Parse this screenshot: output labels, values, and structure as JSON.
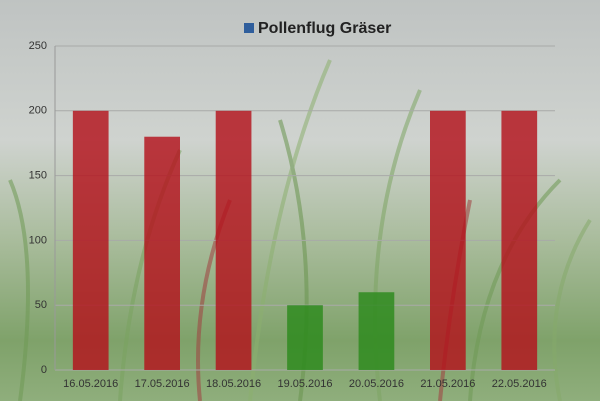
{
  "chart_data": {
    "type": "bar",
    "categories": [
      "16.05.2016",
      "17.05.2016",
      "18.05.2016",
      "19.05.2016",
      "20.05.2016",
      "21.05.2016",
      "22.05.2016"
    ],
    "series": [
      {
        "name": "Pollenflug Gräser",
        "color": "#2f5e9c",
        "values": [
          200,
          180,
          200,
          50,
          60,
          200,
          200
        ],
        "colors": [
          "#b3121c",
          "#b3121c",
          "#b3121c",
          "#2c8a1c",
          "#2c8a1c",
          "#b3121c",
          "#b3121c"
        ]
      }
    ],
    "ylim": [
      0,
      250
    ],
    "yticks": [
      0,
      50,
      100,
      150,
      200,
      250
    ],
    "grid": true,
    "legend": "top"
  }
}
